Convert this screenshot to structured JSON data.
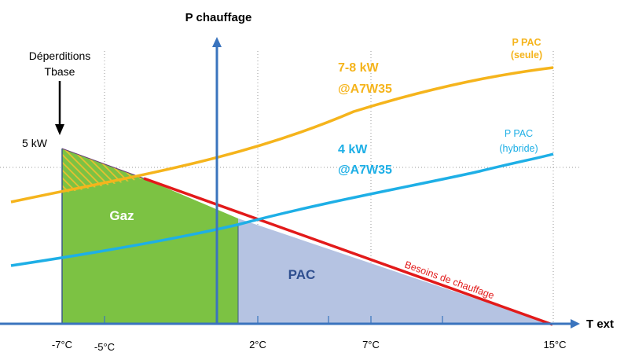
{
  "axis_y_title": "P chauffage",
  "axis_x_title": "T ext",
  "x_ticks": [
    "-7°C",
    "-5°C",
    "2°C",
    "7°C",
    "15°C"
  ],
  "deperditions_label": [
    "Déperditions",
    "Tbase"
  ],
  "power_5kw": "5 kW",
  "curve_seule_label": [
    "P PAC",
    "(seule)"
  ],
  "curve_hybride_label": [
    "P PAC",
    "(hybride)"
  ],
  "seule_rating": [
    "7-8 kW",
    "@A7W35"
  ],
  "hybride_rating": [
    "4 kW",
    "@A7W35"
  ],
  "zone_gaz": "Gaz",
  "zone_pac": "PAC",
  "besoins_label": "Besoins de chauffage",
  "colors": {
    "orange": "#F5B41C",
    "blue": "#1EAFE6",
    "red": "#E21A1A",
    "gaz_fill": "#7CC243",
    "pac_fill": "#B5C3E2",
    "axis": "#3A74BE",
    "hatch": "#E8C030"
  }
}
